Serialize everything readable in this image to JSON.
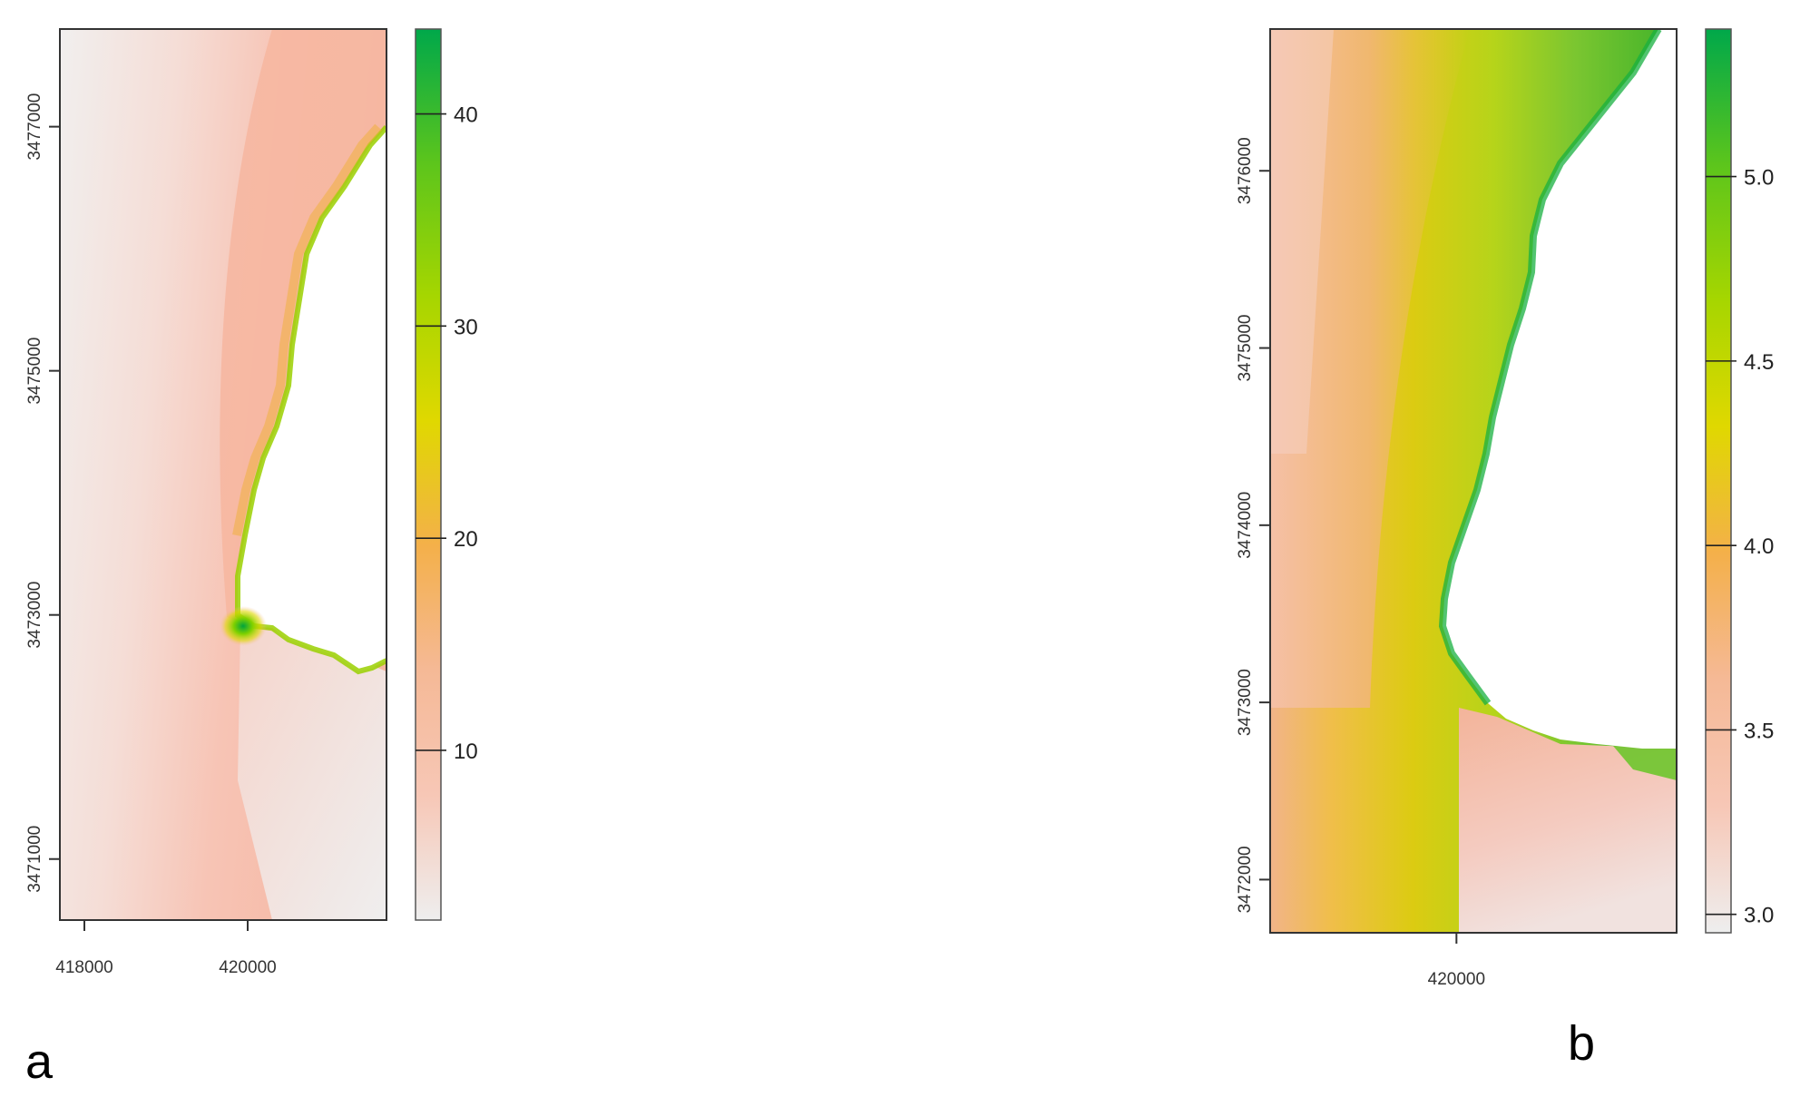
{
  "chart_data": [
    {
      "type": "heatmap",
      "panel_label": "a",
      "title": "",
      "xlabel": "",
      "ylabel": "",
      "x_ticks": [
        418000,
        420000
      ],
      "y_ticks": [
        3471000,
        3473000,
        3475000,
        3477000
      ],
      "xlim": [
        417700,
        421700
      ],
      "ylim": [
        3470500,
        3477800
      ],
      "colorbar": {
        "range": [
          2,
          44
        ],
        "ticks": [
          10,
          20,
          30,
          40
        ],
        "colors": [
          "#eeeeee",
          "#f7c7b6",
          "#f5b996",
          "#f4b04a",
          "#e0d800",
          "#a6d600",
          "#5cc51c",
          "#00a84a"
        ]
      },
      "grid": false,
      "legend": "colorbar-right",
      "description": "raster surface: low values (~3-8) offshore and south, ~9-12 band along coast, peak ~40-44 at shoreline near 420000, 3473100"
    },
    {
      "type": "heatmap",
      "panel_label": "b",
      "title": "",
      "xlabel": "",
      "ylabel": "",
      "x_ticks": [
        420000
      ],
      "y_ticks": [
        3472000,
        3473000,
        3474000,
        3475000,
        3476000
      ],
      "xlim": [
        418900,
        421300
      ],
      "ylim": [
        3471700,
        3476800
      ],
      "colorbar": {
        "range": [
          2.95,
          5.4
        ],
        "ticks": [
          3.0,
          3.5,
          4.0,
          4.5,
          5.0
        ],
        "colors": [
          "#eeeeee",
          "#f7c7b6",
          "#f5b996",
          "#f4b04a",
          "#e0d800",
          "#a6d600",
          "#5cc51c",
          "#00a84a"
        ]
      },
      "grid": false,
      "legend": "colorbar-right",
      "description": "raster surface: ~3.5-3.9 west, rising to ~4.6-5.0 toward shoreline, low ~3.0-3.3 south-east"
    }
  ]
}
